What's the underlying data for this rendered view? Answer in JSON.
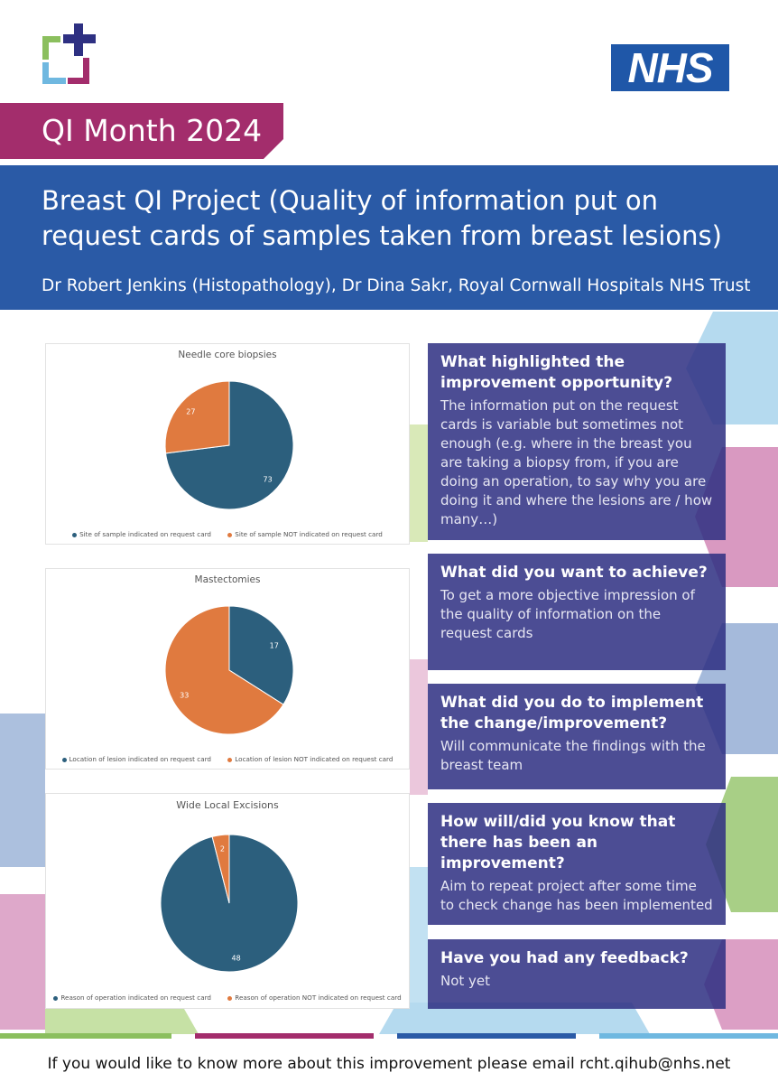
{
  "banner": {
    "label": "QI Month 2024"
  },
  "brand": {
    "nhs_label": "NHS"
  },
  "header": {
    "title": "Breast QI Project (Quality of information put on request cards of samples taken from breast lesions)",
    "authors": "Dr Robert Jenkins (Histopathology), Dr Dina Sakr, Royal Cornwall Hospitals NHS Trust"
  },
  "colors": {
    "blue": "#2c5f7d",
    "orange": "#e07a3f",
    "magenta": "#a32d6c",
    "header_blue": "#2a5aa6",
    "box_purple": "#2e3082"
  },
  "charts": [
    {
      "title": "Needle core biopsies",
      "type": "pie",
      "slices": [
        {
          "label": "Site of sample indicated on request card",
          "value": 73,
          "value_label": "73",
          "color": "#2c5f7d"
        },
        {
          "label": "Site of sample NOT indicated on request card",
          "value": 27,
          "value_label": "27",
          "color": "#e07a3f"
        }
      ]
    },
    {
      "title": "Mastectomies",
      "type": "pie",
      "slices": [
        {
          "label": "Location of lesion indicated on request card",
          "value": 17,
          "value_label": "17",
          "color": "#2c5f7d"
        },
        {
          "label": "Location of lesion NOT indicated on request card",
          "value": 33,
          "value_label": "33",
          "color": "#e07a3f"
        }
      ]
    },
    {
      "title": "Wide Local Excisions",
      "type": "pie",
      "slices": [
        {
          "label": "Reason of operation indicated on request card",
          "value": 48,
          "value_label": "48",
          "color": "#2c5f7d"
        },
        {
          "label": "Reason of operation NOT indicated on request card",
          "value": 2,
          "value_label": "2",
          "color": "#e07a3f"
        }
      ]
    }
  ],
  "chart_data": [
    {
      "type": "pie",
      "title": "Needle core biopsies",
      "categories": [
        "Site of sample indicated on request card",
        "Site of sample NOT indicated on request card"
      ],
      "values": [
        73,
        27
      ]
    },
    {
      "type": "pie",
      "title": "Mastectomies",
      "categories": [
        "Location of lesion indicated on request card",
        "Location of lesion NOT indicated on request card"
      ],
      "values": [
        17,
        33
      ]
    },
    {
      "type": "pie",
      "title": "Wide Local Excisions",
      "categories": [
        "Reason of operation indicated on request card",
        "Reason of operation NOT indicated on request card"
      ],
      "values": [
        48,
        2
      ]
    }
  ],
  "qa": [
    {
      "question": "What highlighted the improvement opportunity?",
      "answer": "The information put on the request cards is variable but sometimes not enough (e.g. where in the breast you are taking a biopsy from, if you are doing an operation, to say why you are doing it and where the lesions are / how many…)"
    },
    {
      "question": "What did you want to achieve?",
      "answer": "To get a more objective impression of the quality of information on the request cards"
    },
    {
      "question": "What did you do to implement the change/improvement?",
      "answer": "Will communicate the findings with the breast team"
    },
    {
      "question": "How will/did you know that there has been an improvement?",
      "answer": "Aim to repeat project after some time to check change has been implemented"
    },
    {
      "question": "Have you had any feedback?",
      "answer": "Not yet"
    }
  ],
  "footer": {
    "text": "If you would like to know more about this improvement please email rcht.qihub@nhs.net"
  }
}
